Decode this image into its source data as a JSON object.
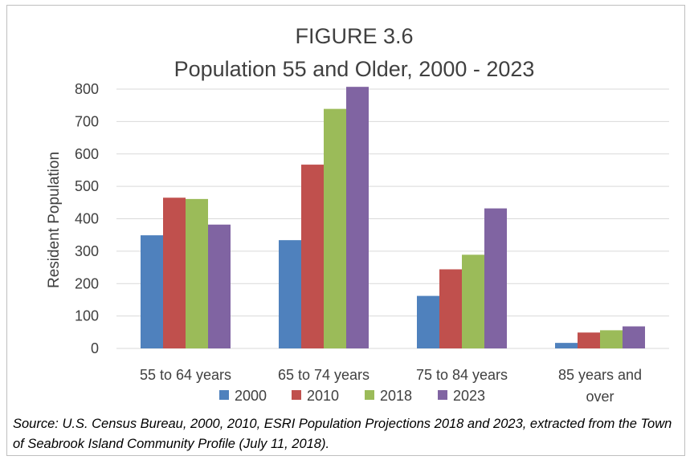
{
  "chart_data": {
    "type": "bar",
    "title": [
      "FIGURE 3.6",
      "Population 55 and Older, 2000 - 2023"
    ],
    "ylabel": "Resident Population",
    "xlabel": "",
    "ylim": [
      0,
      800
    ],
    "yticks": [
      0,
      100,
      200,
      300,
      400,
      500,
      600,
      700,
      800
    ],
    "grid": true,
    "legend_position": "bottom",
    "categories": [
      [
        "55 to 64 years"
      ],
      [
        "65 to 74 years"
      ],
      [
        "75 to 84 years"
      ],
      [
        "85 years and",
        "over"
      ]
    ],
    "series": [
      {
        "name": "2000",
        "color": "#4f81bd",
        "values": [
          349,
          334,
          162,
          17
        ]
      },
      {
        "name": "2010",
        "color": "#c0504d",
        "values": [
          465,
          567,
          244,
          49
        ]
      },
      {
        "name": "2018",
        "color": "#9bbb59",
        "values": [
          461,
          739,
          289,
          56
        ]
      },
      {
        "name": "2023",
        "color": "#8064a2",
        "values": [
          382,
          807,
          432,
          68
        ]
      }
    ]
  },
  "source_note": "Source: U.S. Census Bureau, 2000, 2010, ESRI Population Projections 2018 and 2023, extracted from the Town of Seabrook Island Community Profile (July 11, 2018)."
}
